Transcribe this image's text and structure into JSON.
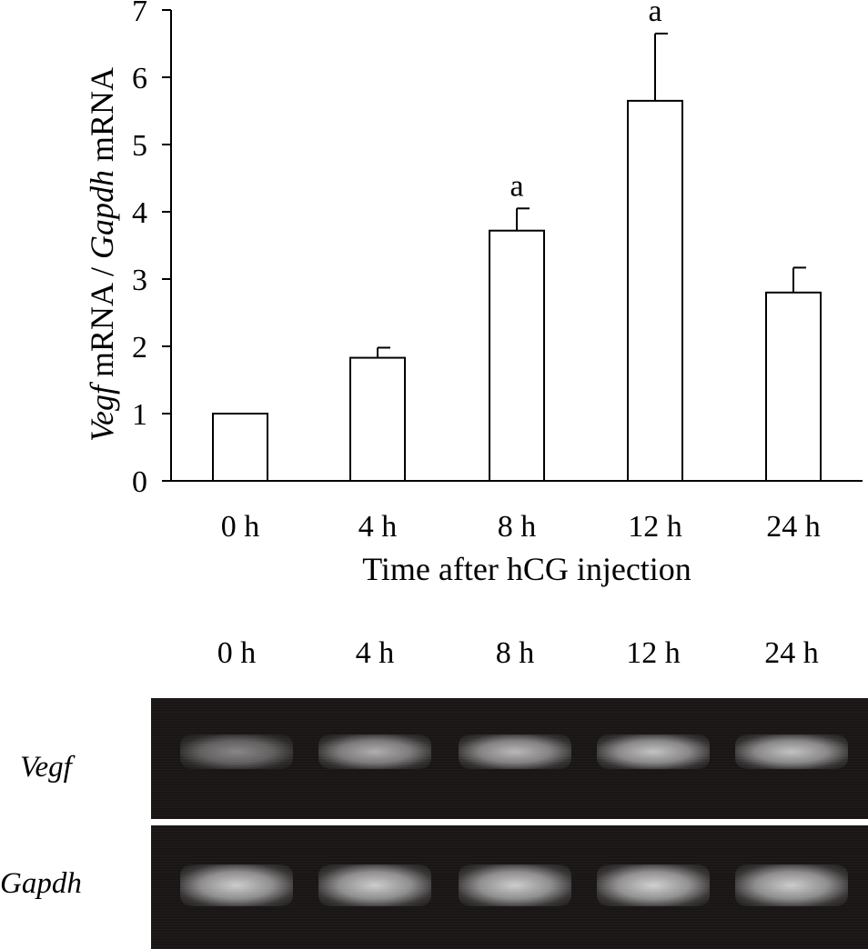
{
  "chart_data": {
    "type": "bar",
    "categories": [
      "0 h",
      "4 h",
      "8 h",
      "12 h",
      "24 h"
    ],
    "values": [
      1.0,
      1.83,
      3.72,
      5.65,
      2.8
    ],
    "errors": [
      0.0,
      0.15,
      0.33,
      1.0,
      0.37
    ],
    "annotations": [
      "",
      "",
      "a",
      "a",
      ""
    ],
    "ylabel_italic_1": "Vegf",
    "ylabel_plain_1": " mRNA / ",
    "ylabel_italic_2": "Gapdh",
    "ylabel_plain_2": " mRNA",
    "xlabel": "Time after hCG injection",
    "ylim": [
      0,
      7
    ],
    "yticks": [
      "0",
      "1",
      "2",
      "3",
      "4",
      "5",
      "6",
      "7"
    ],
    "grid": false,
    "bar_fill": "#ffffff",
    "bar_stroke": "#000000"
  },
  "gel": {
    "lanes": [
      "0 h",
      "4 h",
      "8 h",
      "12 h",
      "24 h"
    ],
    "rows": [
      {
        "label": "Vegf",
        "intensity": [
          0.55,
          0.75,
          0.8,
          0.85,
          0.85
        ]
      },
      {
        "label": "Gapdh",
        "intensity": [
          0.9,
          0.9,
          0.9,
          0.92,
          0.9
        ]
      }
    ],
    "background": "#1a1616"
  }
}
